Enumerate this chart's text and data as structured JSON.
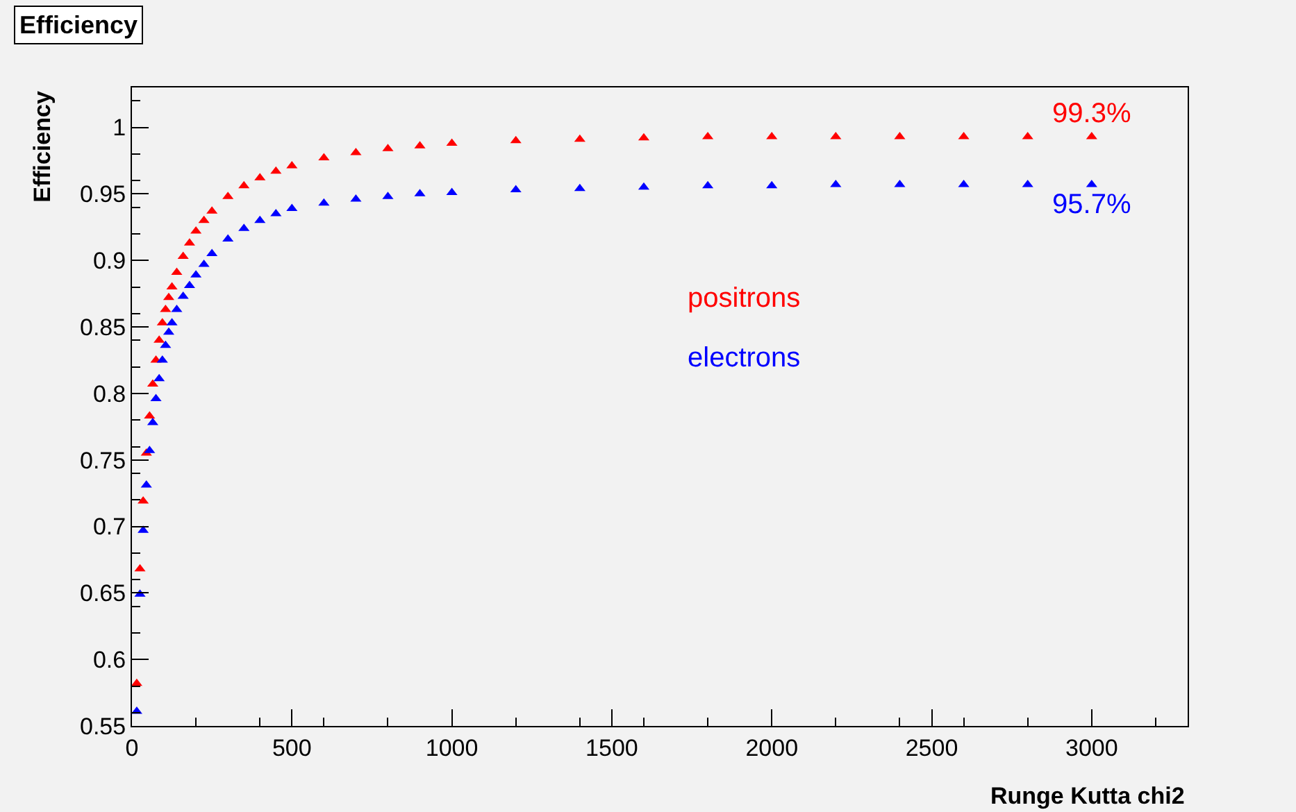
{
  "chart_data": {
    "type": "scatter",
    "title": "Efficiency",
    "xlabel": "Runge Kutta chi2",
    "ylabel": "Efficiency",
    "x": [
      15,
      25,
      35,
      45,
      55,
      65,
      75,
      85,
      95,
      105,
      115,
      125,
      140,
      160,
      180,
      200,
      225,
      250,
      300,
      350,
      400,
      450,
      500,
      600,
      700,
      800,
      900,
      1000,
      1200,
      1400,
      1600,
      1800,
      2000,
      2200,
      2400,
      2600,
      2800,
      3000
    ],
    "series": [
      {
        "name": "positrons",
        "color": "#ff0000",
        "values": [
          0.582,
          0.668,
          0.719,
          0.755,
          0.783,
          0.807,
          0.825,
          0.84,
          0.853,
          0.863,
          0.872,
          0.88,
          0.891,
          0.903,
          0.913,
          0.922,
          0.93,
          0.937,
          0.948,
          0.956,
          0.962,
          0.967,
          0.971,
          0.977,
          0.981,
          0.984,
          0.986,
          0.988,
          0.99,
          0.991,
          0.992,
          0.993,
          0.993,
          0.993,
          0.993,
          0.993,
          0.993,
          0.993
        ],
        "value_labels": [
          null,
          null,
          null,
          null,
          null,
          null,
          null,
          null,
          null,
          null,
          null,
          null,
          null,
          null,
          null,
          null,
          null,
          null,
          null,
          null,
          null,
          null,
          null,
          null,
          null,
          null,
          null,
          null,
          null,
          null,
          null,
          null,
          null,
          null,
          null,
          null,
          null,
          "99.3%"
        ]
      },
      {
        "name": "electrons",
        "color": "#0000ff",
        "values": [
          0.561,
          0.649,
          0.697,
          0.731,
          0.757,
          0.778,
          0.796,
          0.811,
          0.825,
          0.836,
          0.846,
          0.853,
          0.863,
          0.873,
          0.881,
          0.889,
          0.897,
          0.905,
          0.916,
          0.924,
          0.93,
          0.935,
          0.939,
          0.943,
          0.946,
          0.948,
          0.95,
          0.951,
          0.953,
          0.954,
          0.955,
          0.956,
          0.956,
          0.957,
          0.957,
          0.957,
          0.957,
          0.957
        ],
        "value_labels": [
          null,
          null,
          null,
          null,
          null,
          null,
          null,
          null,
          null,
          null,
          null,
          null,
          null,
          null,
          null,
          null,
          null,
          null,
          null,
          null,
          null,
          null,
          null,
          null,
          null,
          null,
          null,
          null,
          null,
          null,
          null,
          null,
          null,
          null,
          null,
          null,
          null,
          "95.7%"
        ]
      }
    ],
    "xlim": [
      0,
      3300
    ],
    "xticks": [
      0,
      500,
      1000,
      1500,
      2000,
      2500,
      3000
    ],
    "ylim": [
      0.55,
      1.03
    ],
    "yticks": [
      0.55,
      0.6,
      0.65,
      0.7,
      0.75,
      0.8,
      0.85,
      0.9,
      0.95,
      1
    ],
    "marker": "triangle",
    "grid": false,
    "legend": false
  }
}
